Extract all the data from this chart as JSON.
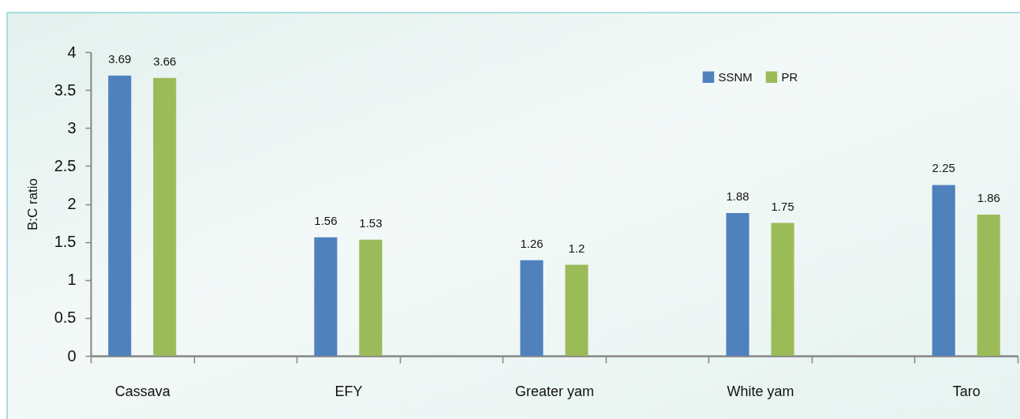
{
  "chart_data": {
    "type": "bar",
    "ylabel": "B:C ratio",
    "categories": [
      "Cassava",
      null,
      "EFY",
      null,
      "Greater yam",
      null,
      "White yam",
      null,
      "Taro"
    ],
    "series": [
      {
        "name": "SSNM",
        "color": "#4f81bd",
        "values": [
          3.69,
          null,
          1.56,
          null,
          1.26,
          null,
          1.88,
          null,
          2.25
        ]
      },
      {
        "name": "PR",
        "color": "#9bbb59",
        "values": [
          3.66,
          null,
          1.53,
          null,
          1.2,
          null,
          1.75,
          null,
          1.86
        ]
      }
    ],
    "ylim": [
      0,
      4
    ],
    "yticks": [
      0,
      0.5,
      1,
      1.5,
      2,
      2.5,
      3,
      3.5,
      4
    ],
    "data_labels": true,
    "legend": "top right"
  }
}
